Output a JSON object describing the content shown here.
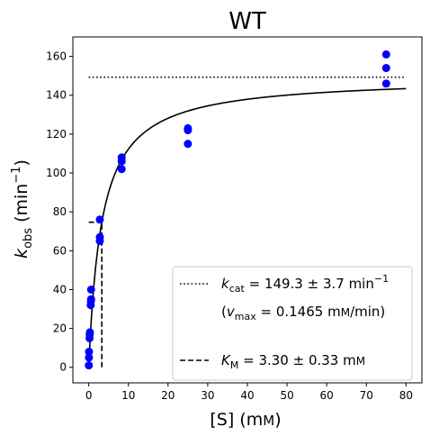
{
  "chart_data": {
    "type": "scatter",
    "title": "WT",
    "xlabel": "[S] (mM)",
    "ylabel": "k_obs (min^-1)",
    "xlim": [
      -4,
      84
    ],
    "ylim": [
      -8,
      170
    ],
    "xticks": [
      0,
      10,
      20,
      30,
      40,
      50,
      60,
      70,
      80
    ],
    "yticks": [
      0,
      20,
      40,
      60,
      80,
      100,
      120,
      140,
      160
    ],
    "grid": false,
    "legend_position": "lower-right",
    "series": [
      {
        "name": "data",
        "color": "#0000ff",
        "marker": "circle",
        "points": [
          {
            "x": 0.03,
            "y": 1
          },
          {
            "x": 0.06,
            "y": 5
          },
          {
            "x": 0.08,
            "y": 8
          },
          {
            "x": 0.2,
            "y": 15
          },
          {
            "x": 0.25,
            "y": 17
          },
          {
            "x": 0.3,
            "y": 18
          },
          {
            "x": 0.5,
            "y": 32
          },
          {
            "x": 0.55,
            "y": 34
          },
          {
            "x": 0.6,
            "y": 35
          },
          {
            "x": 0.6,
            "y": 40
          },
          {
            "x": 2.8,
            "y": 65
          },
          {
            "x": 2.8,
            "y": 67
          },
          {
            "x": 2.8,
            "y": 76
          },
          {
            "x": 8.3,
            "y": 102
          },
          {
            "x": 8.3,
            "y": 106
          },
          {
            "x": 8.3,
            "y": 108
          },
          {
            "x": 25,
            "y": 115
          },
          {
            "x": 25,
            "y": 122
          },
          {
            "x": 25,
            "y": 123
          },
          {
            "x": 75,
            "y": 146
          },
          {
            "x": 75,
            "y": 154
          },
          {
            "x": 75,
            "y": 161
          }
        ]
      },
      {
        "name": "fit",
        "type": "line",
        "color": "#000000",
        "model": "michaelis-menten",
        "kcat": 149.3,
        "KM": 3.3,
        "x_range": [
          0,
          80
        ]
      }
    ],
    "reference_lines": [
      {
        "kind": "horizontal",
        "y": 149.3,
        "x_range": [
          0,
          80
        ],
        "style": "dotted"
      },
      {
        "kind": "km-marker",
        "x": 3.3,
        "y": 74.65,
        "style": "dashed"
      }
    ],
    "legend": [
      {
        "style": "dotted",
        "text": "k_cat = 149.3 ± 3.7 min^-1"
      },
      {
        "style": "none",
        "text": "(v_max = 0.1465 mM/min)"
      },
      {
        "style": "dashed",
        "text": "K_M = 3.30 ± 0.33 mM"
      }
    ]
  }
}
